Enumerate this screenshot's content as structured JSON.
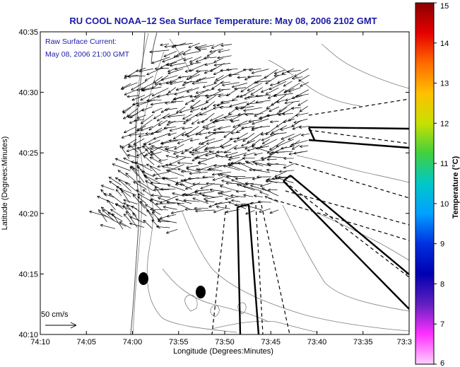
{
  "title": "RU COOL  NOAA–12  Sea Surface Temperature:  May 08, 2006 2102 GMT",
  "annotation": {
    "line1": "Raw Surface Current:",
    "line2": "May 08, 2006 21:00 GMT"
  },
  "scale_label": "50 cm/s",
  "xlabel": "Longitude (Degrees:Minutes)",
  "ylabel": "Latitude (Degrees:Minutes)",
  "x_ticks": [
    "74:10",
    "74:05",
    "74:00",
    "73:55",
    "73:50",
    "73:45",
    "73:40",
    "73:35",
    "73:3"
  ],
  "y_ticks": [
    "40:35",
    "40:30",
    "40:25",
    "40:20",
    "40:15",
    "40:10"
  ],
  "colorbar": {
    "label": "Temperature (°C)",
    "min": 6,
    "max": 15,
    "ticks": [
      "15",
      "14",
      "13",
      "12",
      "11",
      "10",
      "9",
      "8",
      "7",
      "6"
    ],
    "stops": [
      "#8a0000",
      "#e60000",
      "#ff6a00",
      "#ffc000",
      "#c8e000",
      "#40d040",
      "#00c8c8",
      "#00a0ff",
      "#0030e0",
      "#0000b0",
      "#6020c0",
      "#ff30ff",
      "#ffd0ff"
    ]
  },
  "colors": {
    "title": "#1a1aa6",
    "contours": "#7f7f7f",
    "vectors": "#000000"
  },
  "vector_field": {
    "grid_step_minutes": 1,
    "scale_reference_cm_s": 50
  }
}
